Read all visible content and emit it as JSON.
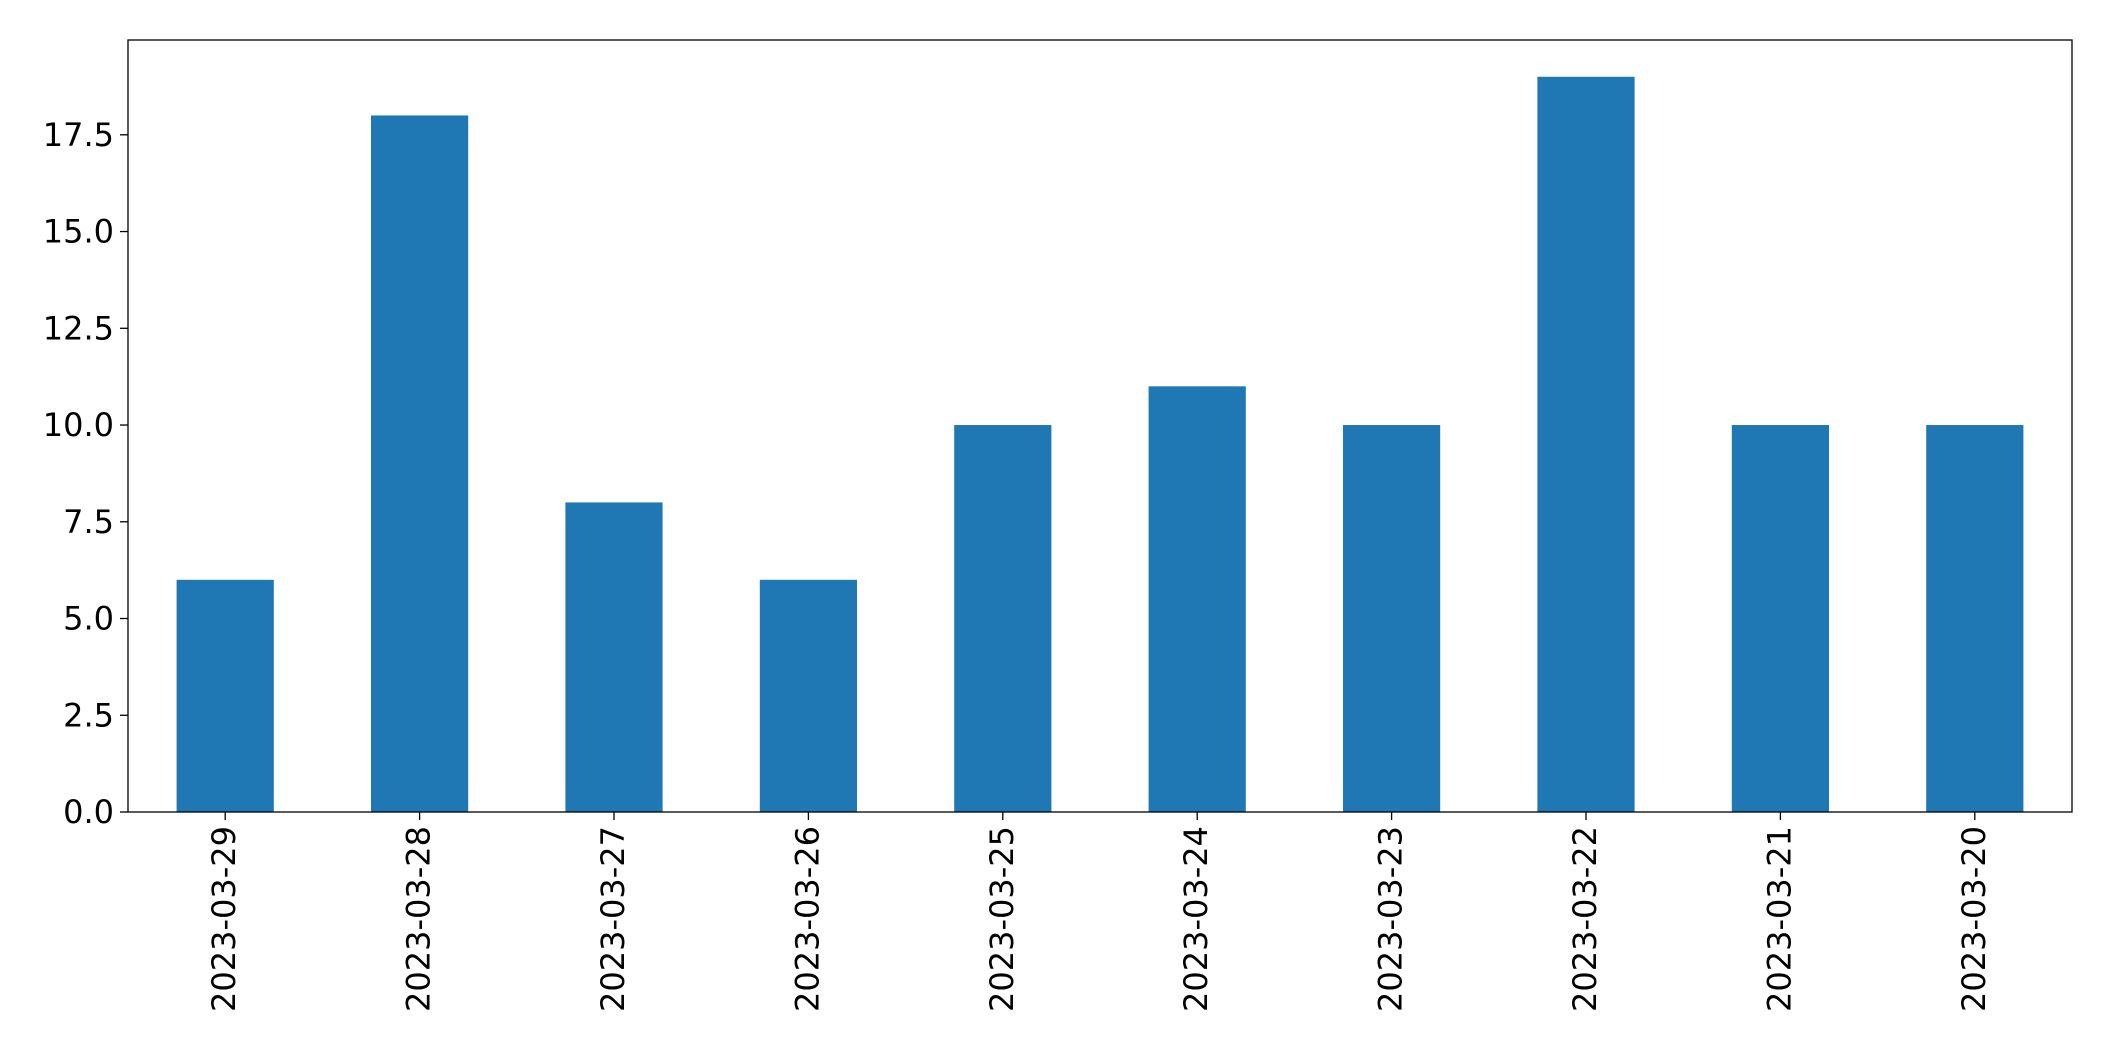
{
  "chart_data": {
    "type": "bar",
    "title": "",
    "xlabel": "",
    "ylabel": "",
    "categories": [
      "2023-03-29",
      "2023-03-28",
      "2023-03-27",
      "2023-03-26",
      "2023-03-25",
      "2023-03-24",
      "2023-03-23",
      "2023-03-22",
      "2023-03-21",
      "2023-03-20"
    ],
    "values": [
      6,
      18,
      8,
      6,
      10,
      11,
      10,
      19,
      10,
      10
    ],
    "ylim": [
      0,
      19.95
    ],
    "yticks": [
      0,
      2.5,
      5,
      7.5,
      10,
      12.5,
      15,
      17.5
    ],
    "ytick_labels": [
      "0.0",
      "2.5",
      "5.0",
      "7.5",
      "10.0",
      "12.5",
      "15.0",
      "17.5"
    ],
    "bar_color": "#1f77b4",
    "grid": false,
    "legend": "none"
  }
}
